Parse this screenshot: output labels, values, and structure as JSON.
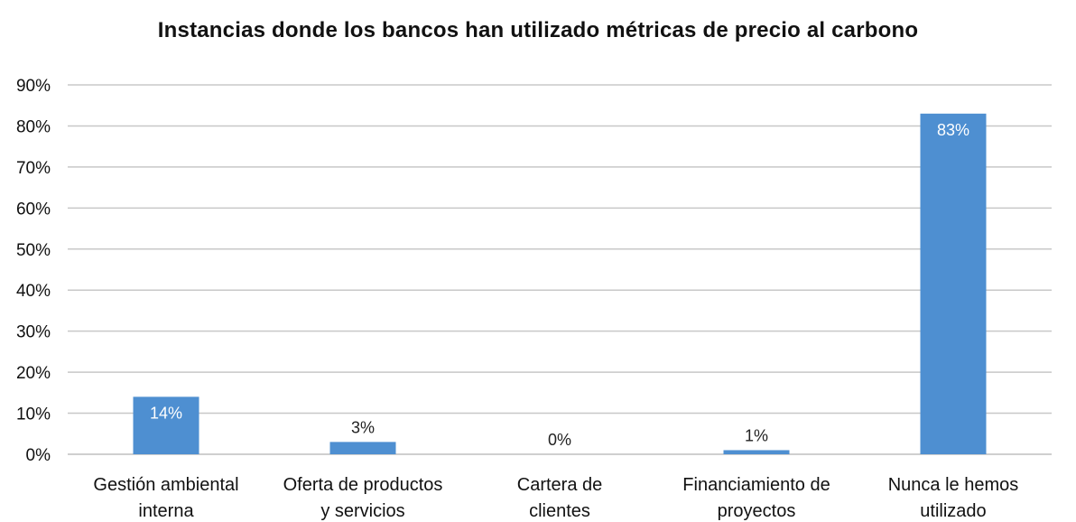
{
  "chart_data": {
    "type": "bar",
    "title": "Instancias donde los bancos han utilizado métricas de precio al carbono",
    "xlabel": "",
    "ylabel": "",
    "categories": [
      [
        "Gestión ambiental",
        "interna"
      ],
      [
        "Oferta de productos",
        "y servicios"
      ],
      [
        "Cartera de",
        "clientes"
      ],
      [
        "Financiamiento de",
        "proyectos"
      ],
      [
        "Nunca le hemos",
        "utilizado"
      ]
    ],
    "values": [
      14,
      3,
      0,
      1,
      83
    ],
    "data_labels": [
      "14%",
      "3%",
      "0%",
      "1%",
      "83%"
    ],
    "ylim": [
      0,
      90
    ],
    "y_ticks": [
      0,
      10,
      20,
      30,
      40,
      50,
      60,
      70,
      80,
      90
    ],
    "y_tick_labels": [
      "0%",
      "10%",
      "20%",
      "30%",
      "40%",
      "50%",
      "60%",
      "70%",
      "80%",
      "90%"
    ],
    "grid": true,
    "legend": "none",
    "colors": {
      "bar": "#4e8fd1",
      "grid": "#c8c8c8",
      "axis": "#bfbfbf",
      "text": "#111111",
      "label_inside": "#ffffff",
      "label_outside": "#222222"
    }
  }
}
